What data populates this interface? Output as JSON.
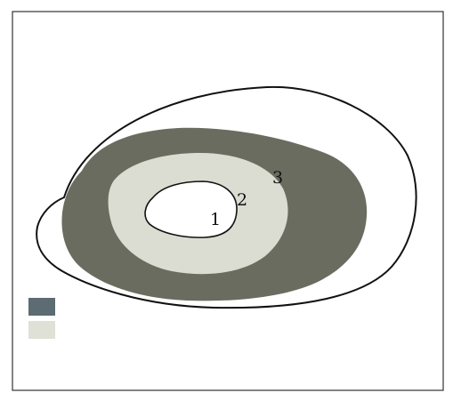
{
  "diagram": {
    "zone_labels": [
      {
        "id": "1",
        "text": "1"
      },
      {
        "id": "2",
        "text": "2"
      },
      {
        "id": "3",
        "text": "3"
      }
    ],
    "colors": {
      "background": "#ffffff",
      "frame_stroke": "#333333",
      "outline_stroke": "#111111",
      "zone_3_fill": "#6b6c60",
      "zone_2_fill": "#dcddd2",
      "zone_1_fill": "#ffffff",
      "legend_swatch_dark": "#5d6b72",
      "legend_swatch_light": "#dfe0d6"
    },
    "legend": [
      {
        "swatch": "legend_swatch_dark",
        "label": ""
      },
      {
        "swatch": "legend_swatch_light",
        "label": ""
      }
    ]
  }
}
